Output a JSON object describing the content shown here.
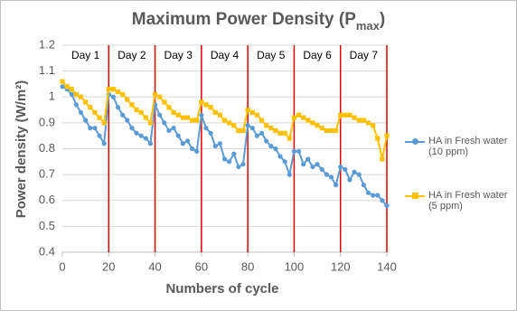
{
  "chart_data": {
    "type": "line",
    "title_parts": [
      "Maximum Power Density (P",
      "max",
      ")"
    ],
    "x_label": "Numbers of cycle",
    "y_label": "Power density (W/m²)",
    "x": [
      0,
      2,
      4,
      6,
      8,
      10,
      12,
      14,
      16,
      18,
      20,
      22,
      24,
      26,
      28,
      30,
      32,
      34,
      36,
      38,
      40,
      42,
      44,
      46,
      48,
      50,
      52,
      54,
      56,
      58,
      60,
      62,
      64,
      66,
      68,
      70,
      72,
      74,
      76,
      78,
      80,
      82,
      84,
      86,
      88,
      90,
      92,
      94,
      96,
      98,
      100,
      102,
      104,
      106,
      108,
      110,
      112,
      114,
      116,
      118,
      120,
      122,
      124,
      126,
      128,
      130,
      132,
      134,
      136,
      138,
      140
    ],
    "series": [
      {
        "name": "HA in Fresh water (10 ppm)",
        "color": "#5b9bd5",
        "values": [
          1.04,
          1.03,
          1.01,
          0.97,
          0.94,
          0.91,
          0.88,
          0.88,
          0.85,
          0.82,
          1.01,
          1.0,
          0.96,
          0.93,
          0.91,
          0.88,
          0.86,
          0.85,
          0.84,
          0.82,
          0.97,
          0.93,
          0.9,
          0.87,
          0.88,
          0.85,
          0.82,
          0.83,
          0.8,
          0.79,
          0.93,
          0.88,
          0.86,
          0.81,
          0.82,
          0.76,
          0.75,
          0.78,
          0.73,
          0.74,
          0.89,
          0.88,
          0.85,
          0.86,
          0.83,
          0.81,
          0.8,
          0.77,
          0.75,
          0.7,
          0.79,
          0.79,
          0.74,
          0.76,
          0.73,
          0.74,
          0.72,
          0.7,
          0.69,
          0.66,
          0.73,
          0.72,
          0.68,
          0.71,
          0.7,
          0.66,
          0.63,
          0.62,
          0.62,
          0.6,
          0.58
        ]
      },
      {
        "name": "HA in Fresh water (5 ppm)",
        "color": "#ffc000",
        "values": [
          1.06,
          1.04,
          1.03,
          1.01,
          1.0,
          0.98,
          0.96,
          0.94,
          0.92,
          0.9,
          1.03,
          1.03,
          1.02,
          1.01,
          0.99,
          0.97,
          0.95,
          0.94,
          0.92,
          0.9,
          1.01,
          1.0,
          0.98,
          0.96,
          0.94,
          0.93,
          0.92,
          0.92,
          0.91,
          0.91,
          0.98,
          0.97,
          0.96,
          0.94,
          0.93,
          0.91,
          0.9,
          0.89,
          0.87,
          0.87,
          0.95,
          0.94,
          0.93,
          0.91,
          0.89,
          0.88,
          0.87,
          0.86,
          0.86,
          0.84,
          0.92,
          0.93,
          0.92,
          0.91,
          0.9,
          0.89,
          0.88,
          0.87,
          0.87,
          0.87,
          0.93,
          0.93,
          0.93,
          0.92,
          0.91,
          0.91,
          0.9,
          0.89,
          0.84,
          0.76,
          0.85
        ]
      }
    ],
    "xlim": [
      0,
      140
    ],
    "xticks": [
      0,
      20,
      40,
      60,
      80,
      100,
      120,
      140
    ],
    "ylim": [
      0.4,
      1.2
    ],
    "yticks": [
      0.4,
      0.5,
      0.6,
      0.7,
      0.8,
      0.9,
      1,
      1.1,
      1.2
    ],
    "grid": true,
    "day_boundaries": [
      20,
      40,
      60,
      80,
      100,
      120,
      140
    ],
    "day_labels": [
      "Day 1",
      "Day 2",
      "Day 3",
      "Day 4",
      "Day 5",
      "Day 6",
      "Day 7"
    ],
    "day_line_color": "#e00000",
    "legend": "right"
  }
}
